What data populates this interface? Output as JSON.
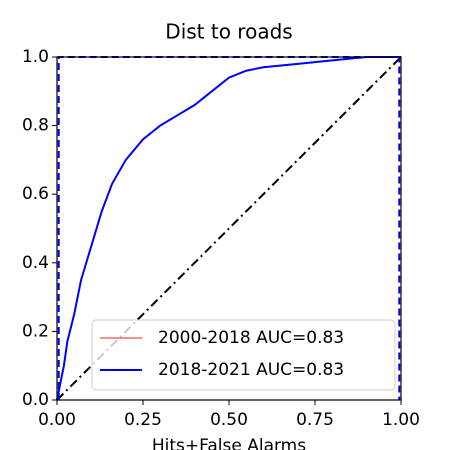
{
  "chart_data": {
    "type": "line",
    "title": "Dist to roads",
    "xlabel": "Hits+False Alarms",
    "x": [
      0,
      0.01,
      0.02,
      0.03,
      0.05,
      0.07,
      0.1,
      0.13,
      0.16,
      0.2,
      0.25,
      0.3,
      0.35,
      0.4,
      0.45,
      0.5,
      0.55,
      0.6,
      0.7,
      0.8,
      0.9,
      1.0
    ],
    "series": [
      {
        "name": "2000-2018 AUC=0.83",
        "color": "#e8221c",
        "width": 1,
        "values": [
          0,
          0.05,
          0.1,
          0.17,
          0.25,
          0.35,
          0.45,
          0.55,
          0.63,
          0.7,
          0.76,
          0.8,
          0.83,
          0.86,
          0.9,
          0.94,
          0.96,
          0.97,
          0.98,
          0.99,
          1.0,
          1.0
        ]
      },
      {
        "name": "2018-2021 AUC=0.83",
        "color": "#0000ff",
        "width": 2,
        "values": [
          0,
          0.05,
          0.1,
          0.17,
          0.25,
          0.35,
          0.45,
          0.55,
          0.63,
          0.7,
          0.76,
          0.8,
          0.83,
          0.86,
          0.9,
          0.94,
          0.96,
          0.97,
          0.98,
          0.99,
          1.0,
          1.0
        ]
      }
    ],
    "reference_lines": [
      {
        "color": "#000000",
        "style": "dashdot",
        "x": [
          0,
          1
        ],
        "y": [
          0,
          1
        ]
      },
      {
        "color": "#0000ff",
        "style": "dashed",
        "x": [
          0.005,
          0.005,
          0.995,
          0.995
        ],
        "y": [
          0,
          1,
          1,
          0
        ]
      }
    ],
    "xlim": [
      0,
      1
    ],
    "ylim": [
      0,
      1
    ],
    "xticks": [
      {
        "value": 0,
        "label": "0.00"
      },
      0.25,
      {
        "value": 0.5,
        "label": "0.50"
      },
      0.75,
      {
        "value": 1,
        "label": "1.00"
      }
    ],
    "yticks": [
      {
        "value": 0,
        "label": "0.0"
      },
      0.2,
      0.4,
      0.6,
      0.8,
      {
        "value": 1,
        "label": "1.0"
      }
    ],
    "legend": "lower right",
    "grid": false
  }
}
